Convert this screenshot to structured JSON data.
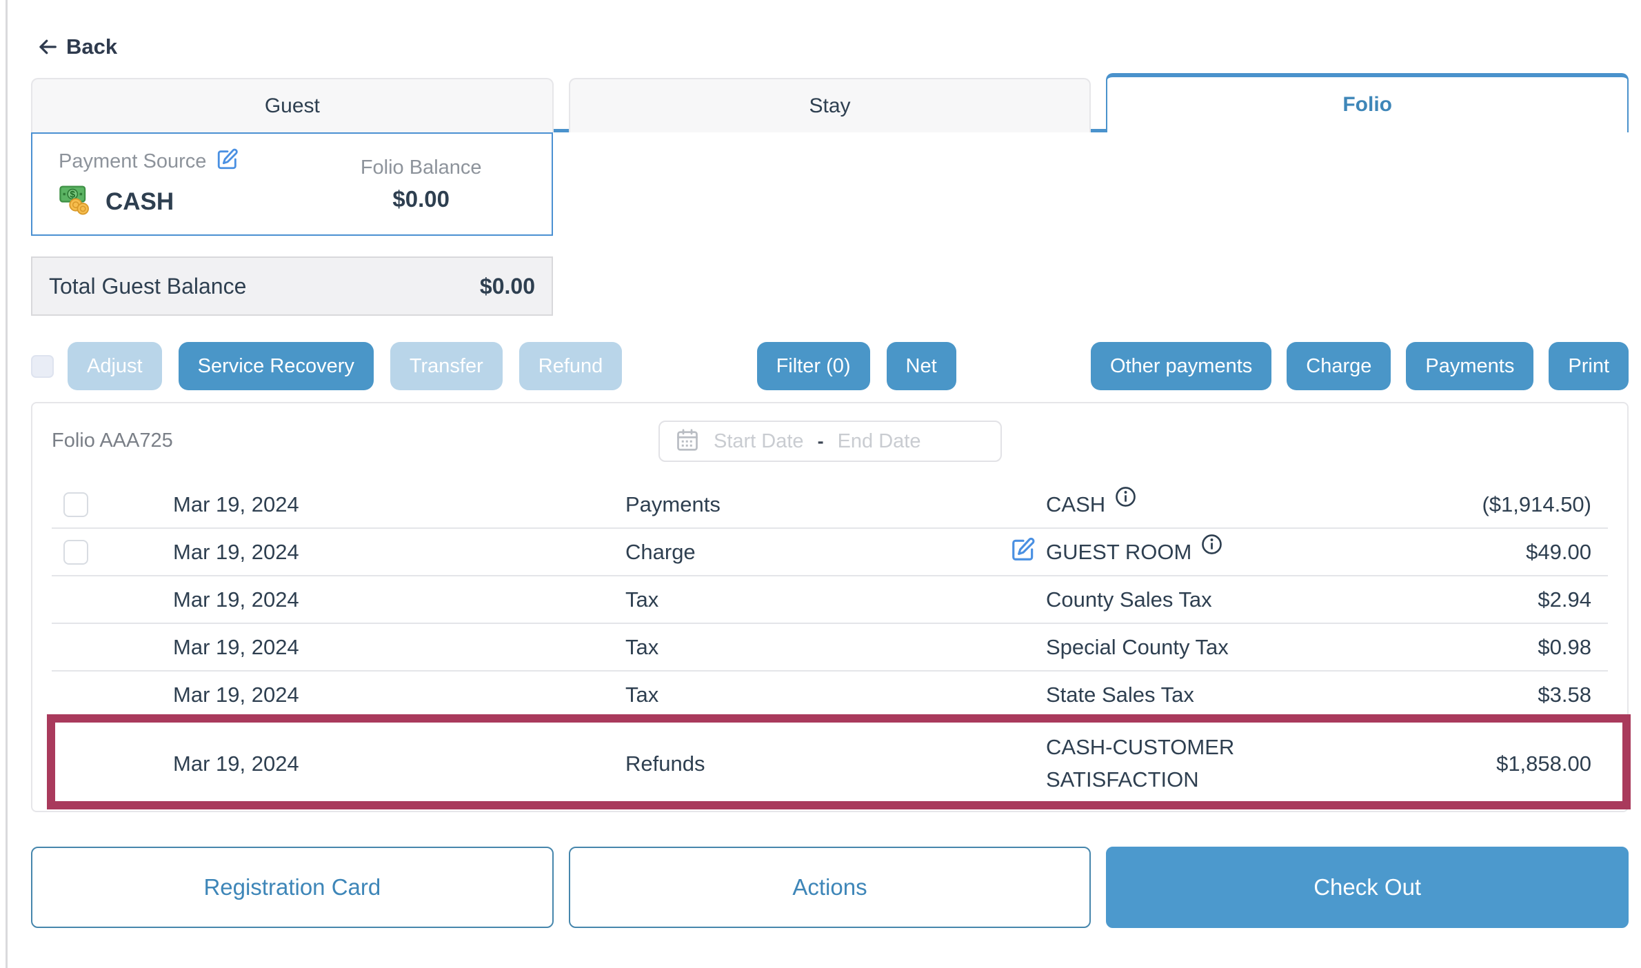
{
  "back": {
    "label": "Back"
  },
  "tabs": [
    {
      "label": "Guest",
      "active": false
    },
    {
      "label": "Stay",
      "active": false
    },
    {
      "label": "Folio",
      "active": true
    }
  ],
  "payment_card": {
    "label": "Payment Source",
    "method": "CASH",
    "balance_label": "Folio Balance",
    "balance_value": "$0.00"
  },
  "total_balance": {
    "label": "Total Guest Balance",
    "value": "$0.00"
  },
  "toolbar": {
    "left": [
      {
        "label": "Adjust",
        "enabled": false
      },
      {
        "label": "Service Recovery",
        "enabled": true
      },
      {
        "label": "Transfer",
        "enabled": false
      },
      {
        "label": "Refund",
        "enabled": false
      }
    ],
    "middle": [
      {
        "label": "Filter (0)",
        "enabled": true
      },
      {
        "label": "Net",
        "enabled": true
      }
    ],
    "right": [
      {
        "label": "Other payments",
        "enabled": true
      },
      {
        "label": "Charge",
        "enabled": true
      },
      {
        "label": "Payments",
        "enabled": true
      },
      {
        "label": "Print",
        "enabled": true
      }
    ]
  },
  "folio": {
    "title": "Folio AAA725",
    "date_filter": {
      "start_placeholder": "Start Date",
      "separator": "-",
      "end_placeholder": "End Date"
    },
    "rows": [
      {
        "date": "Mar 19, 2024",
        "type": "Payments",
        "description": "CASH",
        "amount": "($1,914.50)",
        "checkbox": true,
        "info": true,
        "edit": false,
        "highlight": false
      },
      {
        "date": "Mar 19, 2024",
        "type": "Charge",
        "description": "GUEST ROOM",
        "amount": "$49.00",
        "checkbox": true,
        "info": true,
        "edit": true,
        "highlight": false
      },
      {
        "date": "Mar 19, 2024",
        "type": "Tax",
        "description": "County Sales Tax",
        "amount": "$2.94",
        "checkbox": false,
        "info": false,
        "edit": false,
        "highlight": false
      },
      {
        "date": "Mar 19, 2024",
        "type": "Tax",
        "description": "Special County Tax",
        "amount": "$0.98",
        "checkbox": false,
        "info": false,
        "edit": false,
        "highlight": false
      },
      {
        "date": "Mar 19, 2024",
        "type": "Tax",
        "description": "State Sales Tax",
        "amount": "$3.58",
        "checkbox": false,
        "info": false,
        "edit": false,
        "highlight": false
      },
      {
        "date": "Mar 19, 2024",
        "type": "Refunds",
        "description": "CASH-CUSTOMER SATISFACTION",
        "amount": "$1,858.00",
        "checkbox": false,
        "info": false,
        "edit": false,
        "highlight": true
      }
    ]
  },
  "footer": [
    {
      "label": "Registration Card",
      "variant": "outline"
    },
    {
      "label": "Actions",
      "variant": "outline"
    },
    {
      "label": "Check Out",
      "variant": "solid"
    }
  ],
  "icons": {
    "back": "arrow-left",
    "payment_edit": "edit-pencil-square",
    "cash": "money-banknote-coins",
    "info": "info-circle",
    "calendar": "calendar",
    "row_edit": "edit-pencil-square"
  },
  "colors": {
    "primary_blue": "#4a96c8",
    "disabled_blue": "#b9d5e9",
    "tab_active_blue": "#4a92cc",
    "link_blue": "#3e86b8",
    "dark_text": "#2e3f50",
    "gray_label": "#8d939b",
    "highlight_maroon": "#a93a5c"
  }
}
